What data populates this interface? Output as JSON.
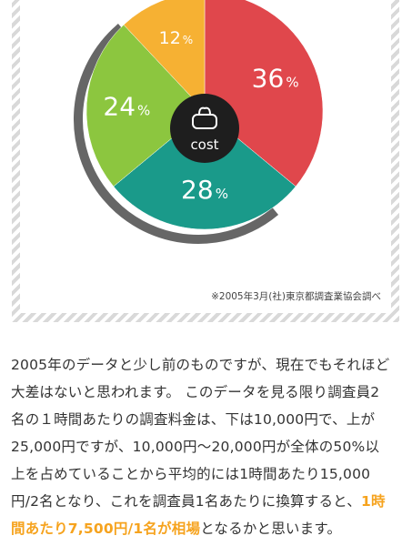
{
  "chart_data": {
    "type": "pie",
    "center_label": "cost",
    "center_icon": "purse-icon",
    "slices": [
      {
        "label": "36",
        "unit": "%",
        "value": 36,
        "color": "#e0474c"
      },
      {
        "label": "28",
        "unit": "%",
        "value": 28,
        "color": "#1a9a8a"
      },
      {
        "label": "24",
        "unit": "%",
        "value": 24,
        "color": "#8cc63f"
      },
      {
        "label": "12",
        "unit": "%",
        "value": 12,
        "color": "#f6b133"
      }
    ],
    "shadow_color": "#666666",
    "source": "※2005年3月(社)東京都調査業協会調べ"
  },
  "paragraph": {
    "line1": "2005年のデータと少し前のものですが、現在でもそれほど",
    "line2": "大差はないと思われます。 このデータを見る限り調査員2",
    "line3": "名の１時間あたりの調査料金は、下は10,000円で、上が",
    "line4": "25,000円ですが、10,000円〜20,000円が全体の50%以",
    "line5": "上を占めていることから平均的には1時間あたり15,000",
    "line6a": "円/2名となり、これを調査員1名あたりに換算すると、",
    "highlight1": "1時",
    "highlight2": "間あたり7,500円/1名が相場",
    "line7b": "となるかと思います。"
  },
  "colors": {
    "highlight": "#f6a31e",
    "frame_stripe": "#d9d9d9"
  }
}
